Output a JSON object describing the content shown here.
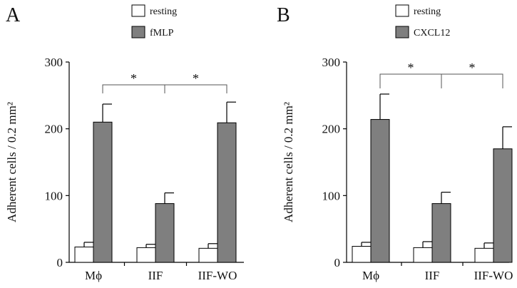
{
  "chart_data": [
    {
      "type": "bar",
      "panel_label": "A",
      "ylabel": "Adherent cells / 0.2 mm²",
      "ylim": [
        0,
        300
      ],
      "yticks": [
        0,
        100,
        200,
        300
      ],
      "categories": [
        "Mϕ",
        "IIF",
        "IIF-WO"
      ],
      "series": [
        {
          "name": "resting",
          "color": "#ffffff",
          "values": [
            23,
            22,
            21
          ],
          "errors": [
            7,
            5,
            7
          ]
        },
        {
          "name": "fMLP",
          "color": "#7f7f7f",
          "values": [
            210,
            88,
            209
          ],
          "errors": [
            27,
            16,
            31
          ]
        }
      ],
      "significance": [
        {
          "from": 0,
          "to": 1,
          "label": "*"
        },
        {
          "from": 1,
          "to": 2,
          "label": "*"
        }
      ]
    },
    {
      "type": "bar",
      "panel_label": "B",
      "ylabel": "Adherent cells / 0.2 mm²",
      "ylim": [
        0,
        300
      ],
      "yticks": [
        0,
        100,
        200,
        300
      ],
      "categories": [
        "Mϕ",
        "IIF",
        "IIF-WO"
      ],
      "series": [
        {
          "name": "resting",
          "color": "#ffffff",
          "values": [
            24,
            22,
            21
          ],
          "errors": [
            6,
            9,
            8
          ]
        },
        {
          "name": "CXCL12",
          "color": "#7f7f7f",
          "values": [
            214,
            88,
            170
          ],
          "errors": [
            38,
            17,
            33
          ]
        }
      ],
      "significance": [
        {
          "from": 0,
          "to": 1,
          "label": "*"
        },
        {
          "from": 1,
          "to": 2,
          "label": "*"
        }
      ]
    }
  ]
}
